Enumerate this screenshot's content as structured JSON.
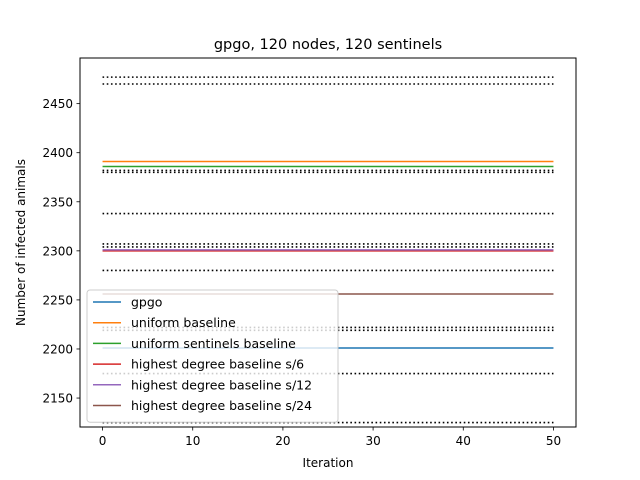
{
  "chart_data": {
    "type": "line",
    "title": "gpgo, 120 nodes, 120 sentinels",
    "xlabel": "Iteration",
    "ylabel": "Number of infected animals",
    "xlim": [
      -2.5,
      52.5
    ],
    "ylim": [
      2120.5,
      2496.5
    ],
    "x_ticks": [
      0,
      10,
      20,
      30,
      40,
      50
    ],
    "y_ticks": [
      2150,
      2200,
      2250,
      2300,
      2350,
      2400,
      2450
    ],
    "grid": false,
    "legend_position": "lower-left",
    "x": [
      0,
      50
    ],
    "series": [
      {
        "name": "gpgo",
        "color": "#1f77b4",
        "values": [
          2201,
          2201
        ]
      },
      {
        "name": "uniform baseline",
        "color": "#ff7f0e",
        "values": [
          2391,
          2391
        ]
      },
      {
        "name": "uniform sentinels baseline",
        "color": "#2ca02c",
        "values": [
          2386,
          2386
        ]
      },
      {
        "name": "highest degree baseline s/6",
        "color": "#d62728",
        "values": [
          2300,
          2300
        ]
      },
      {
        "name": "highest degree baseline s/12",
        "color": "#9467bd",
        "values": [
          2301,
          2301
        ]
      },
      {
        "name": "highest degree baseline s/24",
        "color": "#8c564b",
        "values": [
          2256,
          2256
        ]
      }
    ],
    "reference_lines": {
      "style": "dotted",
      "color": "#000000",
      "values": [
        2477,
        2470,
        2382,
        2380,
        2338,
        2307,
        2304,
        2280,
        2222,
        2219,
        2175,
        2125
      ]
    }
  }
}
